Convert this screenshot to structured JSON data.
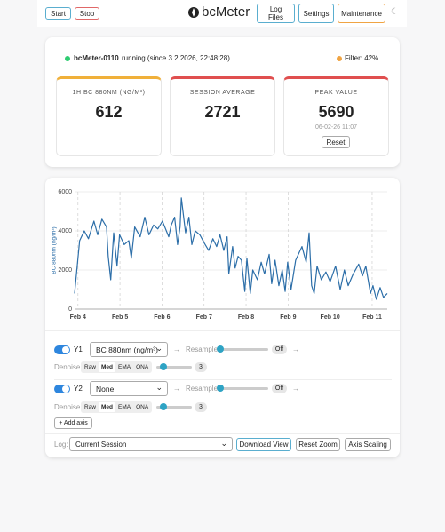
{
  "toolbar": {
    "start": "Start",
    "stop": "Stop",
    "logo": "bcMeter",
    "log_files": "Log Files",
    "settings": "Settings",
    "maintenance": "Maintenance",
    "theme": "☾"
  },
  "status": {
    "device": "bcMeter-0110",
    "state": "running (since 3.2.2026, 22:48:28)",
    "filter": "Filter: 42%"
  },
  "stats": [
    {
      "label": "1H BC 880NM (NG/M³)",
      "value": 612
    },
    {
      "label": "SESSION AVERAGE",
      "value": 2721
    },
    {
      "label": "PEAK VALUE",
      "value": 5690,
      "time": "06-02-26 11:07",
      "reset": "Reset"
    }
  ],
  "chart_data": {
    "type": "line",
    "y_label": "BC 880nm (ng/m³)",
    "color": "#2c6ea8",
    "x": [
      3.92,
      4.04,
      4.15,
      4.25,
      4.38,
      4.47,
      4.57,
      4.68,
      4.72,
      4.78,
      4.85,
      4.93,
      4.99,
      5.1,
      5.21,
      5.27,
      5.35,
      5.48,
      5.59,
      5.69,
      5.8,
      5.9,
      6.01,
      6.16,
      6.22,
      6.3,
      6.37,
      6.43,
      6.46,
      6.56,
      6.64,
      6.71,
      6.79,
      6.9,
      7.0,
      7.11,
      7.21,
      7.3,
      7.38,
      7.47,
      7.55,
      7.59,
      7.68,
      7.74,
      7.81,
      7.89,
      7.97,
      8.02,
      8.1,
      8.16,
      8.27,
      8.36,
      8.44,
      8.55,
      8.61,
      8.69,
      8.78,
      8.86,
      8.93,
      8.99,
      9.07,
      9.18,
      9.33,
      9.43,
      9.5,
      9.56,
      9.62,
      9.69,
      9.79,
      9.9,
      10.0,
      10.13,
      10.24,
      10.34,
      10.43,
      10.55,
      10.68,
      10.77,
      10.85,
      10.96,
      11.02,
      11.1,
      11.19,
      11.27,
      11.36
    ],
    "values": [
      800,
      3500,
      4000,
      3600,
      4500,
      3800,
      4600,
      4200,
      2700,
      1500,
      3900,
      2200,
      3800,
      3300,
      3500,
      2600,
      4200,
      3700,
      4700,
      3800,
      4300,
      4100,
      4500,
      3700,
      4300,
      4700,
      3300,
      4200,
      5690,
      3900,
      4700,
      3300,
      4000,
      3800,
      3400,
      3000,
      3600,
      3200,
      3800,
      3000,
      3700,
      1800,
      3200,
      2100,
      2700,
      2500,
      900,
      2600,
      800,
      2000,
      1500,
      2400,
      1800,
      2800,
      1300,
      2500,
      1200,
      2000,
      900,
      2400,
      1000,
      2500,
      3200,
      2400,
      3900,
      1200,
      800,
      2200,
      1500,
      1900,
      1400,
      2200,
      1000,
      2000,
      1200,
      1800,
      2300,
      1700,
      2200,
      800,
      1200,
      500,
      1100,
      600,
      800
    ],
    "xlim": [
      3.92,
      11.36
    ],
    "xticks": [
      {
        "value": 4,
        "label": "Feb 4"
      },
      {
        "value": 5,
        "label": "Feb 5"
      },
      {
        "value": 6,
        "label": "Feb 6"
      },
      {
        "value": 7,
        "label": "Feb 7"
      },
      {
        "value": 8,
        "label": "Feb 8"
      },
      {
        "value": 9,
        "label": "Feb 9"
      },
      {
        "value": 10,
        "label": "Feb 10"
      },
      {
        "value": 11,
        "label": "Feb 11"
      }
    ],
    "ylim": [
      0,
      6000
    ],
    "yticks": [
      0,
      2000,
      4000,
      6000
    ],
    "grid": true
  },
  "controls": {
    "axes": [
      {
        "id": "Y1",
        "source": "BC 880nm (ng/m³)",
        "resample_label": "Resample",
        "resample": "Off",
        "denoise_label": "Denoise",
        "denoise_modes": [
          "Raw",
          "Med",
          "EMA",
          "ONA"
        ],
        "denoise": "3"
      },
      {
        "id": "Y2",
        "source": "None",
        "resample_label": "Resample",
        "resample": "Off",
        "denoise_label": "Denoise",
        "denoise_modes": [
          "Raw",
          "Med",
          "EMA",
          "ONA"
        ],
        "denoise": "3"
      }
    ],
    "add_axis": "+ Add axis",
    "log_label": "Log:",
    "log": "Current Session",
    "buttons": [
      "Download View",
      "Reset Zoom",
      "Axis Scaling"
    ]
  }
}
